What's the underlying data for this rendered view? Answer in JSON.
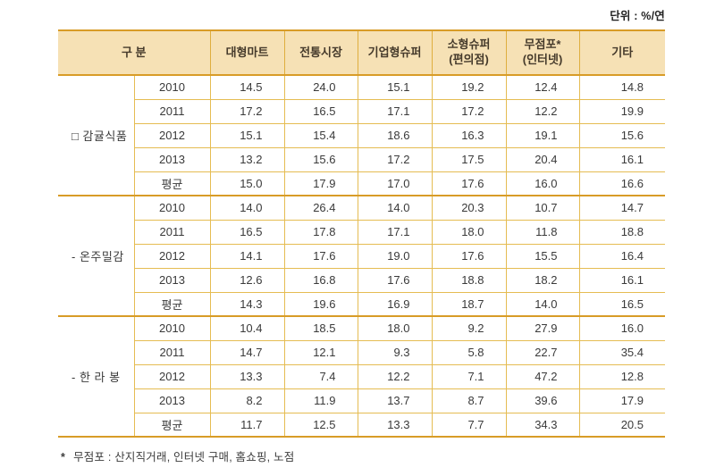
{
  "unit_label": "단위 : %/연",
  "colors": {
    "header_bg": "#f6e1b5",
    "border_strong": "#d89c27",
    "border_light": "#e5bc52"
  },
  "table": {
    "headers": [
      {
        "line1": "구 분"
      },
      {
        "line1": "대형마트"
      },
      {
        "line1": "전통시장"
      },
      {
        "line1": "기업형슈퍼"
      },
      {
        "line1": "소형슈퍼",
        "line2": "(편의점)"
      },
      {
        "line1": "무점포*",
        "line2": "(인터넷)"
      },
      {
        "line1": "기타"
      }
    ],
    "groups": [
      {
        "label": "□ 감귤식품",
        "rows": [
          {
            "year": "2010",
            "values": [
              "14.5",
              "24.0",
              "15.1",
              "19.2",
              "12.4",
              "14.8"
            ]
          },
          {
            "year": "2011",
            "values": [
              "17.2",
              "16.5",
              "17.1",
              "17.2",
              "12.2",
              "19.9"
            ]
          },
          {
            "year": "2012",
            "values": [
              "15.1",
              "15.4",
              "18.6",
              "16.3",
              "19.1",
              "15.6"
            ]
          },
          {
            "year": "2013",
            "values": [
              "13.2",
              "15.6",
              "17.2",
              "17.5",
              "20.4",
              "16.1"
            ]
          },
          {
            "year": "평균",
            "values": [
              "15.0",
              "17.9",
              "17.0",
              "17.6",
              "16.0",
              "16.6"
            ]
          }
        ]
      },
      {
        "label": "- 온주밀감",
        "rows": [
          {
            "year": "2010",
            "values": [
              "14.0",
              "26.4",
              "14.0",
              "20.3",
              "10.7",
              "14.7"
            ]
          },
          {
            "year": "2011",
            "values": [
              "16.5",
              "17.8",
              "17.1",
              "18.0",
              "11.8",
              "18.8"
            ]
          },
          {
            "year": "2012",
            "values": [
              "14.1",
              "17.6",
              "19.0",
              "17.6",
              "15.5",
              "16.4"
            ]
          },
          {
            "year": "2013",
            "values": [
              "12.6",
              "16.8",
              "17.6",
              "18.8",
              "18.2",
              "16.1"
            ]
          },
          {
            "year": "평균",
            "values": [
              "14.3",
              "19.6",
              "16.9",
              "18.7",
              "14.0",
              "16.5"
            ]
          }
        ]
      },
      {
        "label": "- 한 라 봉",
        "rows": [
          {
            "year": "2010",
            "values": [
              "10.4",
              "18.5",
              "18.0",
              "9.2",
              "27.9",
              "16.0"
            ]
          },
          {
            "year": "2011",
            "values": [
              "14.7",
              "12.1",
              "9.3",
              "5.8",
              "22.7",
              "35.4"
            ]
          },
          {
            "year": "2012",
            "values": [
              "13.3",
              "7.4",
              "12.2",
              "7.1",
              "47.2",
              "12.8"
            ]
          },
          {
            "year": "2013",
            "values": [
              "8.2",
              "11.9",
              "13.7",
              "8.7",
              "39.6",
              "17.9"
            ]
          },
          {
            "year": "평균",
            "values": [
              "11.7",
              "12.5",
              "13.3",
              "7.7",
              "34.3",
              "20.5"
            ]
          }
        ]
      }
    ]
  },
  "footnote": {
    "marker": "*",
    "text": "무점포 : 산지직거래, 인터넷 구매, 홈쇼핑, 노점"
  }
}
